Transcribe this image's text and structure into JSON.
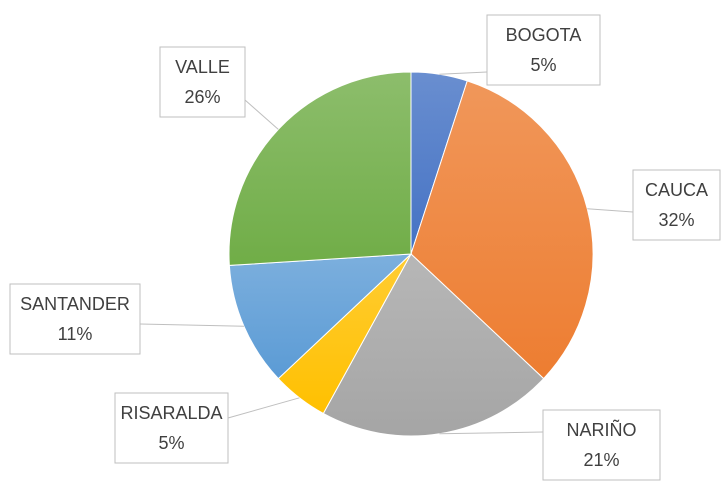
{
  "chart_data": {
    "type": "pie",
    "categories": [
      "BOGOTA",
      "CAUCA",
      "NARIÑO",
      "RISARALDA",
      "SANTANDER",
      "VALLE"
    ],
    "values": [
      5,
      32,
      21,
      5,
      11,
      26
    ],
    "value_labels": [
      "5%",
      "32%",
      "21%",
      "5%",
      "11%",
      "26%"
    ],
    "colors": [
      "#4472c4",
      "#ed7d31",
      "#a5a5a5",
      "#ffc000",
      "#5b9bd5",
      "#70ad47"
    ]
  }
}
